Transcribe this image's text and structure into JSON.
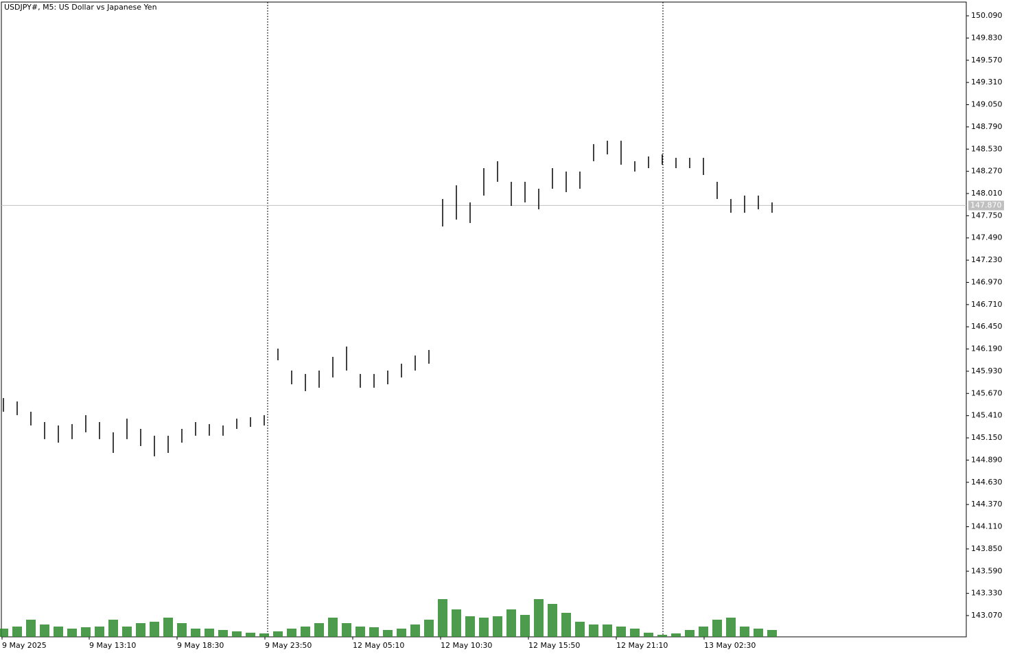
{
  "chart_data": {
    "type": "range_bar",
    "title": "USDJPY#, M5:  US Dollar vs Japanese Yen",
    "high": [
      145.616,
      145.576,
      145.456,
      145.335,
      145.295,
      145.311,
      145.416,
      145.335,
      145.215,
      145.375,
      145.255,
      145.175,
      145.175,
      145.255,
      145.335,
      145.311,
      145.295,
      145.375,
      145.392,
      145.416,
      146.195,
      145.938,
      145.898,
      145.938,
      146.098,
      146.219,
      145.898,
      145.898,
      145.938,
      146.018,
      146.114,
      146.179,
      147.946,
      148.106,
      147.906,
      148.307,
      148.388,
      148.147,
      148.147,
      148.066,
      148.307,
      148.267,
      148.267,
      148.588,
      148.628,
      148.628,
      148.388,
      148.444,
      148.468,
      148.428,
      148.428,
      148.428,
      148.147,
      147.946,
      147.986,
      147.986,
      147.906
    ],
    "low": [
      145.456,
      145.416,
      145.295,
      145.135,
      145.094,
      145.135,
      145.215,
      145.135,
      144.974,
      145.135,
      145.054,
      144.934,
      144.974,
      145.094,
      145.175,
      145.175,
      145.175,
      145.255,
      145.279,
      145.295,
      146.058,
      145.777,
      145.697,
      145.737,
      145.857,
      145.938,
      145.737,
      145.737,
      145.777,
      145.857,
      145.938,
      146.018,
      147.624,
      147.705,
      147.665,
      147.986,
      148.147,
      147.865,
      147.906,
      147.825,
      148.066,
      148.026,
      148.066,
      148.388,
      148.468,
      148.347,
      148.267,
      148.307,
      148.347,
      148.307,
      148.307,
      148.227,
      147.946,
      147.785,
      147.785,
      147.825,
      147.785
    ],
    "volume": [
      12,
      15,
      25,
      18,
      15,
      12,
      14,
      15,
      25,
      15,
      20,
      22,
      28,
      20,
      12,
      12,
      10,
      8,
      6,
      5,
      8,
      12,
      15,
      20,
      28,
      20,
      15,
      14,
      10,
      12,
      18,
      25,
      55,
      40,
      30,
      28,
      30,
      40,
      32,
      55,
      48,
      35,
      22,
      18,
      18,
      15,
      12,
      6,
      3,
      5,
      10,
      15,
      25,
      28,
      15,
      12,
      10
    ],
    "bar_color": "#000000",
    "volume_color": "#2e8b2e",
    "volume_lim": [
      0,
      100
    ],
    "xlim": [
      -0.15,
      70.15
    ],
    "xticks": [
      {
        "value": -0.1,
        "label": "9 May 2025"
      },
      {
        "value": 6.25,
        "label": "9 May 13:10"
      },
      {
        "value": 12.65,
        "label": "9 May 18:30"
      },
      {
        "value": 19.05,
        "label": "9 May 23:50"
      },
      {
        "value": 25.45,
        "label": "12 May 05:10"
      },
      {
        "value": 31.85,
        "label": "12 May 10:30"
      },
      {
        "value": 38.25,
        "label": "12 May 15:50"
      },
      {
        "value": 44.65,
        "label": "12 May 21:10"
      },
      {
        "value": 51.05,
        "label": "13 May 02:30"
      }
    ],
    "period_separators": [
      19.25,
      48.05
    ],
    "ylim": [
      142.821,
      150.251
    ],
    "yticks": [
      {
        "value": 150.09,
        "label": "150.090"
      },
      {
        "value": 149.83,
        "label": "149.830"
      },
      {
        "value": 149.57,
        "label": "149.570"
      },
      {
        "value": 149.31,
        "label": "149.310"
      },
      {
        "value": 149.05,
        "label": "149.050"
      },
      {
        "value": 148.79,
        "label": "148.790"
      },
      {
        "value": 148.53,
        "label": "148.530"
      },
      {
        "value": 148.27,
        "label": "148.270"
      },
      {
        "value": 148.01,
        "label": "148.010"
      },
      {
        "value": 147.75,
        "label": "147.750"
      },
      {
        "value": 147.49,
        "label": "147.490"
      },
      {
        "value": 147.23,
        "label": "147.230"
      },
      {
        "value": 146.97,
        "label": "146.970"
      },
      {
        "value": 146.71,
        "label": "146.710"
      },
      {
        "value": 146.45,
        "label": "146.450"
      },
      {
        "value": 146.19,
        "label": "146.190"
      },
      {
        "value": 145.93,
        "label": "145.930"
      },
      {
        "value": 145.67,
        "label": "145.670"
      },
      {
        "value": 145.41,
        "label": "145.410"
      },
      {
        "value": 145.15,
        "label": "145.150"
      },
      {
        "value": 144.89,
        "label": "144.890"
      },
      {
        "value": 144.63,
        "label": "144.630"
      },
      {
        "value": 144.37,
        "label": "144.370"
      },
      {
        "value": 144.11,
        "label": "144.110"
      },
      {
        "value": 143.85,
        "label": "143.850"
      },
      {
        "value": 143.59,
        "label": "143.590"
      },
      {
        "value": 143.33,
        "label": "143.330"
      },
      {
        "value": 143.07,
        "label": "143.070"
      }
    ],
    "current_price": {
      "value": 147.87,
      "label": "147.870"
    }
  }
}
